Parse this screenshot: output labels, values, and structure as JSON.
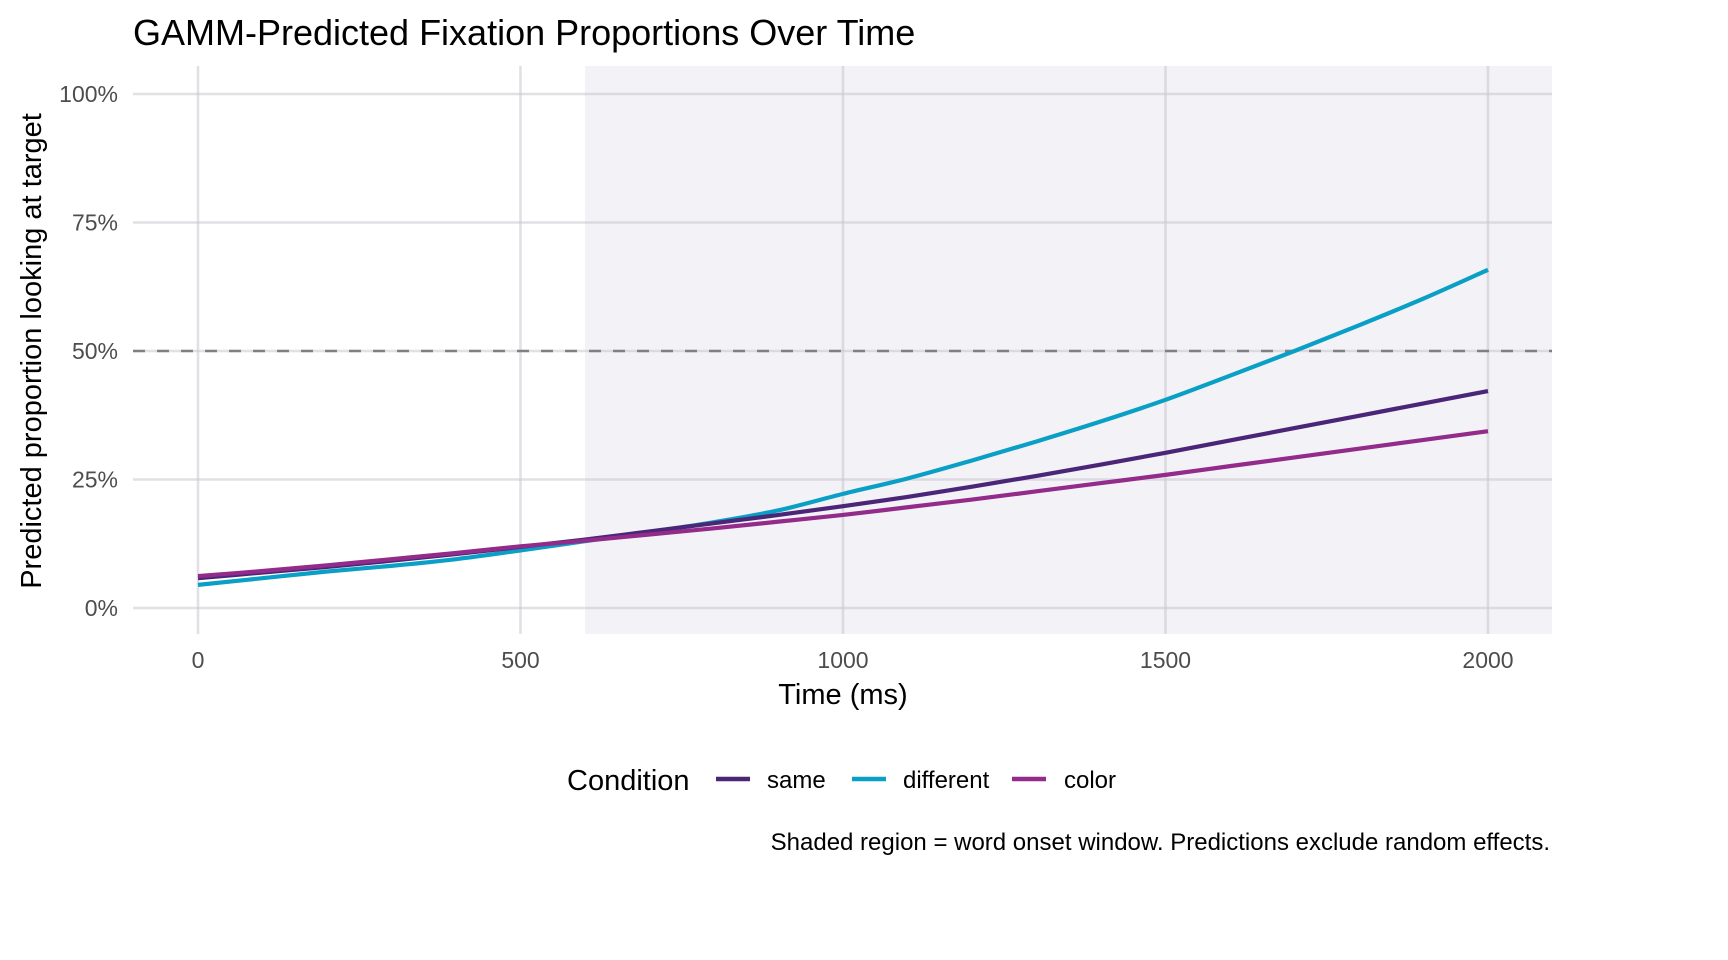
{
  "chart_data": {
    "type": "line",
    "title": "GAMM-Predicted Fixation Proportions Over Time",
    "xlabel": "Time (ms)",
    "ylabel": "Predicted proportion looking at target",
    "xlim": [
      -100,
      2050
    ],
    "ylim": [
      -0.05,
      1.03
    ],
    "x_ticks": [
      0,
      500,
      1000,
      1500,
      2000
    ],
    "x_tick_labels": [
      "0",
      "500",
      "1000",
      "1500",
      "2000"
    ],
    "y_ticks": [
      0,
      0.25,
      0.5,
      0.75,
      1.0
    ],
    "y_tick_labels": [
      "0%",
      "25%",
      "50%",
      "75%",
      "100%"
    ],
    "grid": true,
    "reference_line": {
      "y": 0.5,
      "style": "dashed",
      "color": "#808080"
    },
    "shaded_region": {
      "x_start": 600,
      "x_end": 2050,
      "color": "#f3f2f7"
    },
    "legend": {
      "title": "Condition",
      "position": "bottom"
    },
    "x": [
      0,
      100,
      200,
      300,
      400,
      500,
      600,
      700,
      800,
      900,
      1000,
      1100,
      1200,
      1300,
      1400,
      1500,
      1600,
      1700,
      1800,
      1900,
      2000
    ],
    "series": [
      {
        "name": "same",
        "color": "#4b2577",
        "values": [
          0.058,
          0.069,
          0.08,
          0.092,
          0.105,
          0.119,
          0.133,
          0.149,
          0.165,
          0.181,
          0.198,
          0.216,
          0.236,
          0.257,
          0.279,
          0.302,
          0.326,
          0.35,
          0.374,
          0.398,
          0.422
        ]
      },
      {
        "name": "different",
        "color": "#0a9fc5",
        "values": [
          0.045,
          0.058,
          0.071,
          0.082,
          0.095,
          0.112,
          0.13,
          0.148,
          0.167,
          0.19,
          0.222,
          0.252,
          0.287,
          0.324,
          0.363,
          0.405,
          0.452,
          0.5,
          0.55,
          0.602,
          0.658
        ]
      },
      {
        "name": "color",
        "color": "#922b8a",
        "values": [
          0.062,
          0.072,
          0.083,
          0.095,
          0.107,
          0.12,
          0.131,
          0.143,
          0.155,
          0.168,
          0.181,
          0.196,
          0.211,
          0.227,
          0.243,
          0.259,
          0.276,
          0.293,
          0.31,
          0.327,
          0.344
        ]
      }
    ],
    "caption": "Shaded region = word onset window. Predictions exclude random effects."
  }
}
